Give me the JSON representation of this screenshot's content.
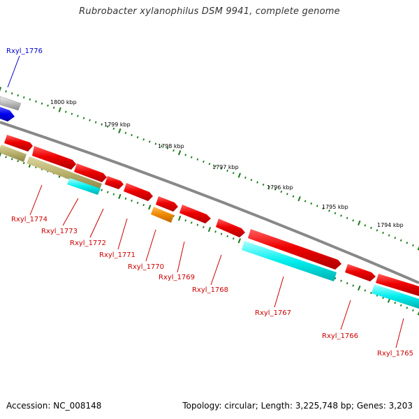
{
  "title": "Rubrobacter xylanophilus DSM 9941, complete genome",
  "footer": {
    "accession": "Accession: NC_008148",
    "info": "Topology: circular; Length: 3,225,748 bp; Genes: 3,203"
  },
  "colors": {
    "red": "#ee0000",
    "blue": "#0000ee",
    "cyan": "#00eeee",
    "olive": "#b8b06a",
    "orange": "#ee8800",
    "gray": "#bbbbbb",
    "backbone": "#888888",
    "tick": "#1a7a1a",
    "label_red": "#cc0000",
    "label_blue": "#0000cc"
  },
  "kbp_labels": [
    "1800 kbp",
    "1799 kbp",
    "1798 kbp",
    "1797 kbp",
    "1796 kbp",
    "1795 kbp",
    "1794 kbp"
  ],
  "genes": [
    {
      "label": "Rxyl_1776",
      "color": "blue"
    },
    {
      "label": "Rxyl_1774",
      "color": "red"
    },
    {
      "label": "Rxyl_1773",
      "color": "red"
    },
    {
      "label": "Rxyl_1772",
      "color": "red"
    },
    {
      "label": "Rxyl_1771",
      "color": "red"
    },
    {
      "label": "Rxyl_1770",
      "color": "red"
    },
    {
      "label": "Rxyl_1769",
      "color": "red"
    },
    {
      "label": "Rxyl_1768",
      "color": "red"
    },
    {
      "label": "Rxyl_1767",
      "color": "red"
    },
    {
      "label": "Rxyl_1766",
      "color": "red"
    },
    {
      "label": "Rxyl_1765",
      "color": "red"
    }
  ]
}
